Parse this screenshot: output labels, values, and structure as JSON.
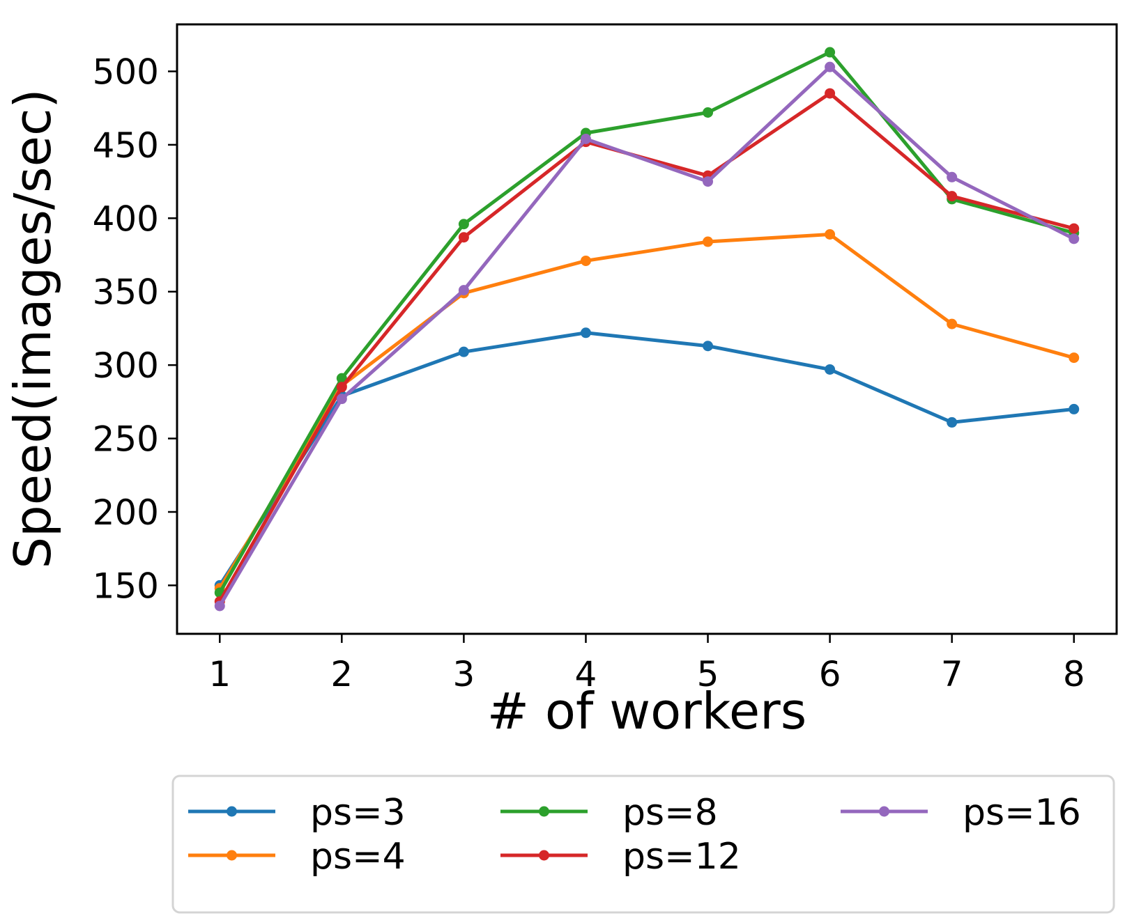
{
  "chart_data": {
    "type": "line",
    "xlabel": "# of workers",
    "ylabel": "Speed(images/sec)",
    "x": [
      1,
      2,
      3,
      4,
      5,
      6,
      7,
      8
    ],
    "x_ticks": [
      1,
      2,
      3,
      4,
      5,
      6,
      7,
      8
    ],
    "y_ticks": [
      150,
      200,
      250,
      300,
      350,
      400,
      450,
      500
    ],
    "xlim": [
      0.65,
      8.35
    ],
    "ylim": [
      117,
      532
    ],
    "grid": false,
    "legend": {
      "placement": "below",
      "columns": 3
    },
    "series": [
      {
        "name": "ps=3",
        "color": "#1f77b4",
        "values": [
          150,
          279,
          309,
          322,
          313,
          297,
          261,
          270
        ]
      },
      {
        "name": "ps=4",
        "color": "#ff7f0e",
        "values": [
          148,
          286,
          349,
          371,
          384,
          389,
          328,
          305
        ]
      },
      {
        "name": "ps=8",
        "color": "#2ca02c",
        "values": [
          145,
          291,
          396,
          458,
          472,
          513,
          413,
          390
        ]
      },
      {
        "name": "ps=12",
        "color": "#d62728",
        "values": [
          139,
          285,
          387,
          452,
          429,
          485,
          415,
          393
        ]
      },
      {
        "name": "ps=16",
        "color": "#9467bd",
        "values": [
          136,
          277,
          351,
          454,
          425,
          503,
          428,
          386
        ]
      }
    ]
  }
}
